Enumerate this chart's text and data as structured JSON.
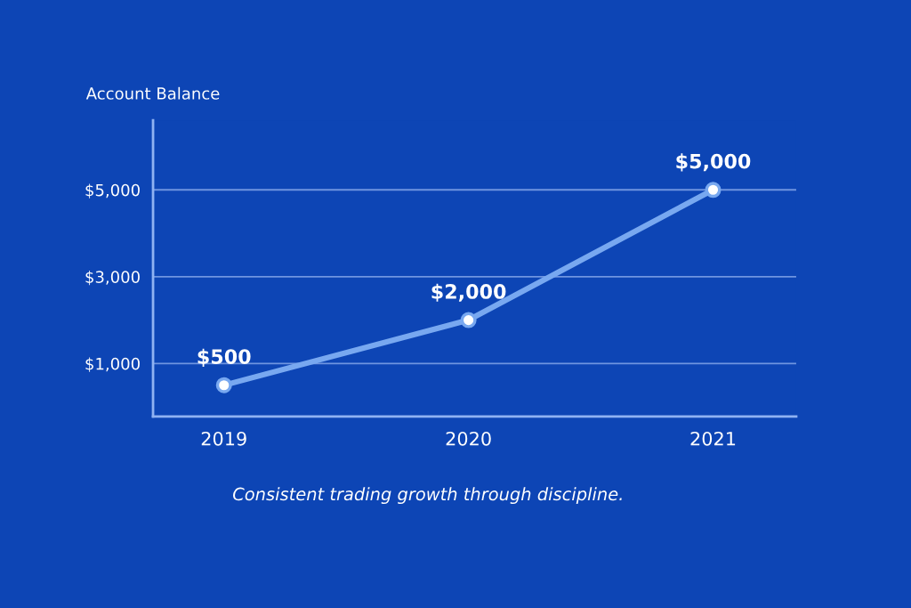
{
  "chart_data": {
    "type": "line",
    "ylabel": "Account Balance",
    "categories": [
      "2019",
      "2020",
      "2021"
    ],
    "series": [
      {
        "color": "#78a8f0",
        "values": [
          500,
          2000,
          5000
        ],
        "value_labels": [
          "$500",
          "$2,000",
          "$5,000"
        ]
      }
    ],
    "ylim": [
      -220,
      6600
    ],
    "yticks": [
      {
        "value": 1000,
        "label": "$1,000"
      },
      {
        "value": 3000,
        "label": "$3,000"
      },
      {
        "value": 5000,
        "label": "$5,000"
      }
    ],
    "grid": "y",
    "marker": "circle",
    "line_style": "solid",
    "annotations": [
      "Consistent trading growth through discipline."
    ]
  }
}
